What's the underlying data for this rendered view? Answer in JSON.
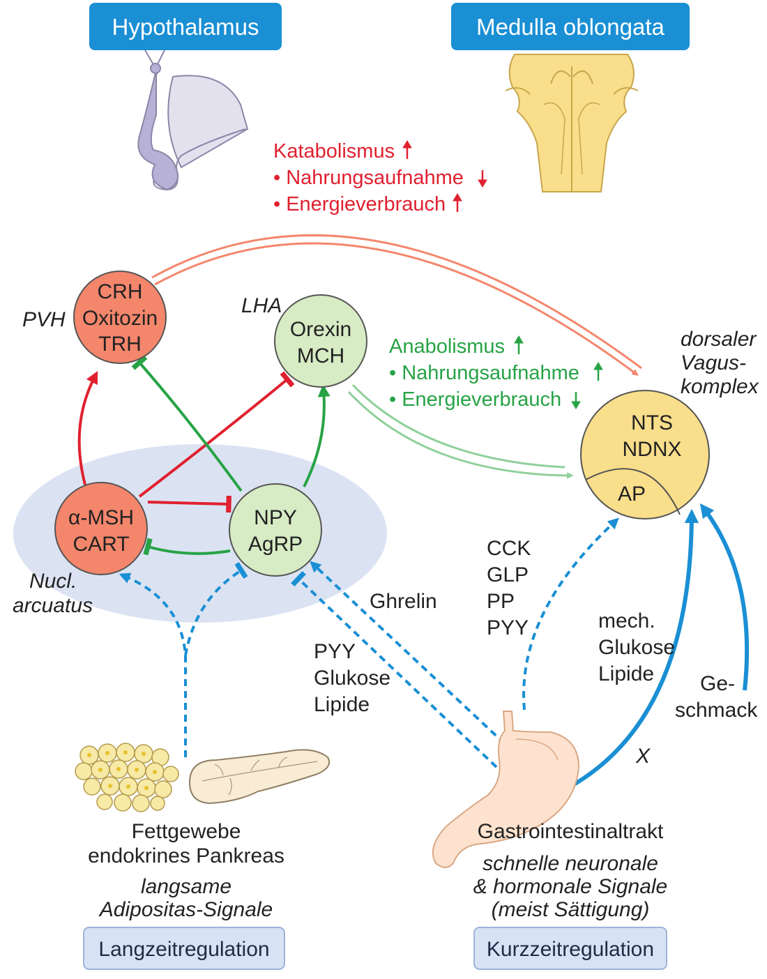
{
  "headers": {
    "hypothalamus": "Hypothalamus",
    "medulla": "Medulla oblongata"
  },
  "catabolic": {
    "title": "Katabolismus",
    "line1": "• Nahrungsaufnahme",
    "line2": "• Energieverbrauch"
  },
  "anabolic": {
    "title": "Anabolismus",
    "line1": "• Nahrungsaufnahme",
    "line2": "• Energieverbrauch"
  },
  "regions": {
    "pvh": "PVH",
    "lha": "LHA",
    "nucl_line1": "Nucl.",
    "nucl_line2": "arcuatus",
    "dvc_line1": "dorsaler",
    "dvc_line2": "Vagus-",
    "dvc_line3": "komplex"
  },
  "nodes": {
    "crh": {
      "l1": "CRH",
      "l2": "Oxitozin",
      "l3": "TRH"
    },
    "orexin": {
      "l1": "Orexin",
      "l2": "MCH"
    },
    "msh": {
      "l1": "α-MSH",
      "l2": "CART"
    },
    "npy": {
      "l1": "NPY",
      "l2": "AgRP"
    },
    "nts": {
      "l1": "NTS",
      "l2": "NDNX",
      "l3": "AP"
    }
  },
  "signals": {
    "ghrelin": "Ghrelin",
    "pyy_l1": "PYY",
    "pyy_l2": "Glukose",
    "pyy_l3": "Lipide",
    "cck_l1": "CCK",
    "cck_l2": "GLP",
    "cck_l3": "PP",
    "cck_l4": "PYY",
    "mech_l1": "mech.",
    "mech_l2": "Glukose",
    "mech_l3": "Lipide",
    "ge_l1": "Ge-",
    "ge_l2": "schmack",
    "x": "X"
  },
  "bottom_left": {
    "l1": "Fettgewebe",
    "l2": "endokrines Pankreas",
    "l3": "langsame",
    "l4": "Adipositas-Signale",
    "button": "Langzeitregulation"
  },
  "bottom_right": {
    "l1": "Gastrointestinaltrakt",
    "l2": "schnelle neuronale",
    "l3": "& hormonale Signale",
    "l4": "(meist Sättigung)",
    "button": "Kurzzeitregulation"
  },
  "colors": {
    "header_blue": "#1a8fd4",
    "salmon": "#f4866c",
    "green_node": "#d7ebc4",
    "yellow": "#f9de8b",
    "red_arrow": "#e0202f",
    "green_arrow": "#27a345",
    "blue_signal": "#1a8fd4"
  }
}
